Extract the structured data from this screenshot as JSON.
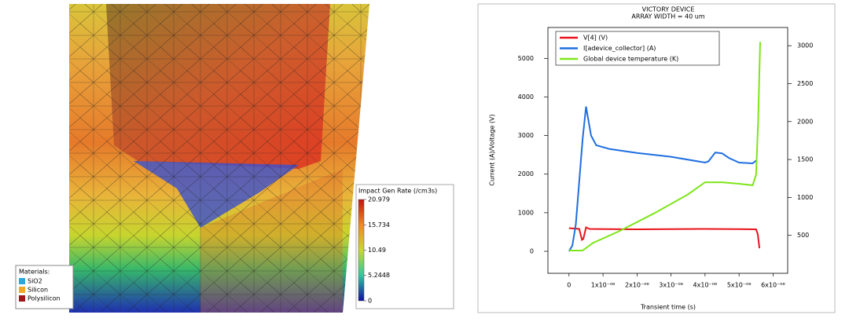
{
  "mesh_view": {
    "materials": {
      "title": "Materials:",
      "items": [
        {
          "name": "SiO2",
          "color": "#29a9e1"
        },
        {
          "name": "Silicon",
          "color": "#f5a623"
        },
        {
          "name": "Polysilicon",
          "color": "#a3141b"
        }
      ]
    },
    "colorbar": {
      "title": "Impact Gen Rate (/cm3s)",
      "range": [
        0,
        20.979
      ],
      "ticks": [
        20.979,
        15.734,
        10.49,
        5.2448,
        0
      ]
    }
  },
  "chart_data": {
    "type": "line",
    "title": "VICTORY DEVICE",
    "subtitle": "ARRAY WIDTH = 40 um",
    "x_label": "Transient time (s)",
    "y_label": "Current (A)/Voltage (V)",
    "xlim": [
      -6.2e-07,
      6.43e-06
    ],
    "xticks": [
      0,
      {
        "value": 1e-06,
        "label": "1x10⁻⁰⁶"
      },
      {
        "value": 2e-06,
        "label": "2x10⁻⁰⁶"
      },
      {
        "value": 3e-06,
        "label": "3x10⁻⁰⁶"
      },
      {
        "value": 4e-06,
        "label": "4x10⁻⁰⁶"
      },
      {
        "value": 5e-06,
        "label": "5x10⁻⁰⁶"
      },
      {
        "value": 6e-06,
        "label": "6x10⁻⁰⁶"
      }
    ],
    "ylim": [
      -570,
      5800
    ],
    "yticks": [
      0,
      1000,
      2000,
      3000,
      4000,
      5000
    ],
    "y2lim": [
      0,
      3240
    ],
    "y2ticks": [
      500,
      1000,
      1500,
      2000,
      2500,
      3000
    ],
    "legend": "upper-left",
    "series": [
      {
        "name": "V[4] (V)",
        "color": "#e8141b",
        "x": [
          0,
          3e-07,
          3.8e-07,
          4.2e-07,
          5e-07,
          6e-07,
          2e-06,
          4e-06,
          5e-06,
          5.5e-06,
          5.55e-06,
          5.6e-06
        ],
        "values": [
          600,
          580,
          300,
          320,
          620,
          580,
          570,
          580,
          575,
          570,
          450,
          80
        ]
      },
      {
        "name": "I[adevice_collector] (A)",
        "color": "#1f6fe0",
        "x": [
          0,
          1e-07,
          2e-07,
          3e-07,
          4e-07,
          5e-07,
          5.5e-07,
          6.5e-07,
          8e-07,
          1.2e-06,
          2e-06,
          3e-06,
          4e-06,
          4.1e-06,
          4.3e-06,
          4.5e-06,
          4.7e-06,
          5e-06,
          5.4e-06,
          5.5e-06
        ],
        "values": [
          0,
          150,
          700,
          1800,
          2900,
          3750,
          3500,
          3000,
          2750,
          2650,
          2550,
          2450,
          2300,
          2330,
          2560,
          2540,
          2420,
          2300,
          2280,
          2350
        ]
      },
      {
        "name": "Global device temperature (K)",
        "color": "#7ee51a",
        "axis": "y2",
        "x": [
          0,
          4e-07,
          7e-07,
          1.5e-06,
          2.5e-06,
          3.5e-06,
          4e-06,
          4.5e-06,
          5e-06,
          5.4e-06,
          5.5e-06,
          5.56e-06,
          5.62e-06
        ],
        "values": [
          300,
          300,
          400,
          560,
          790,
          1040,
          1200,
          1200,
          1180,
          1160,
          1300,
          2000,
          3050
        ]
      }
    ]
  }
}
